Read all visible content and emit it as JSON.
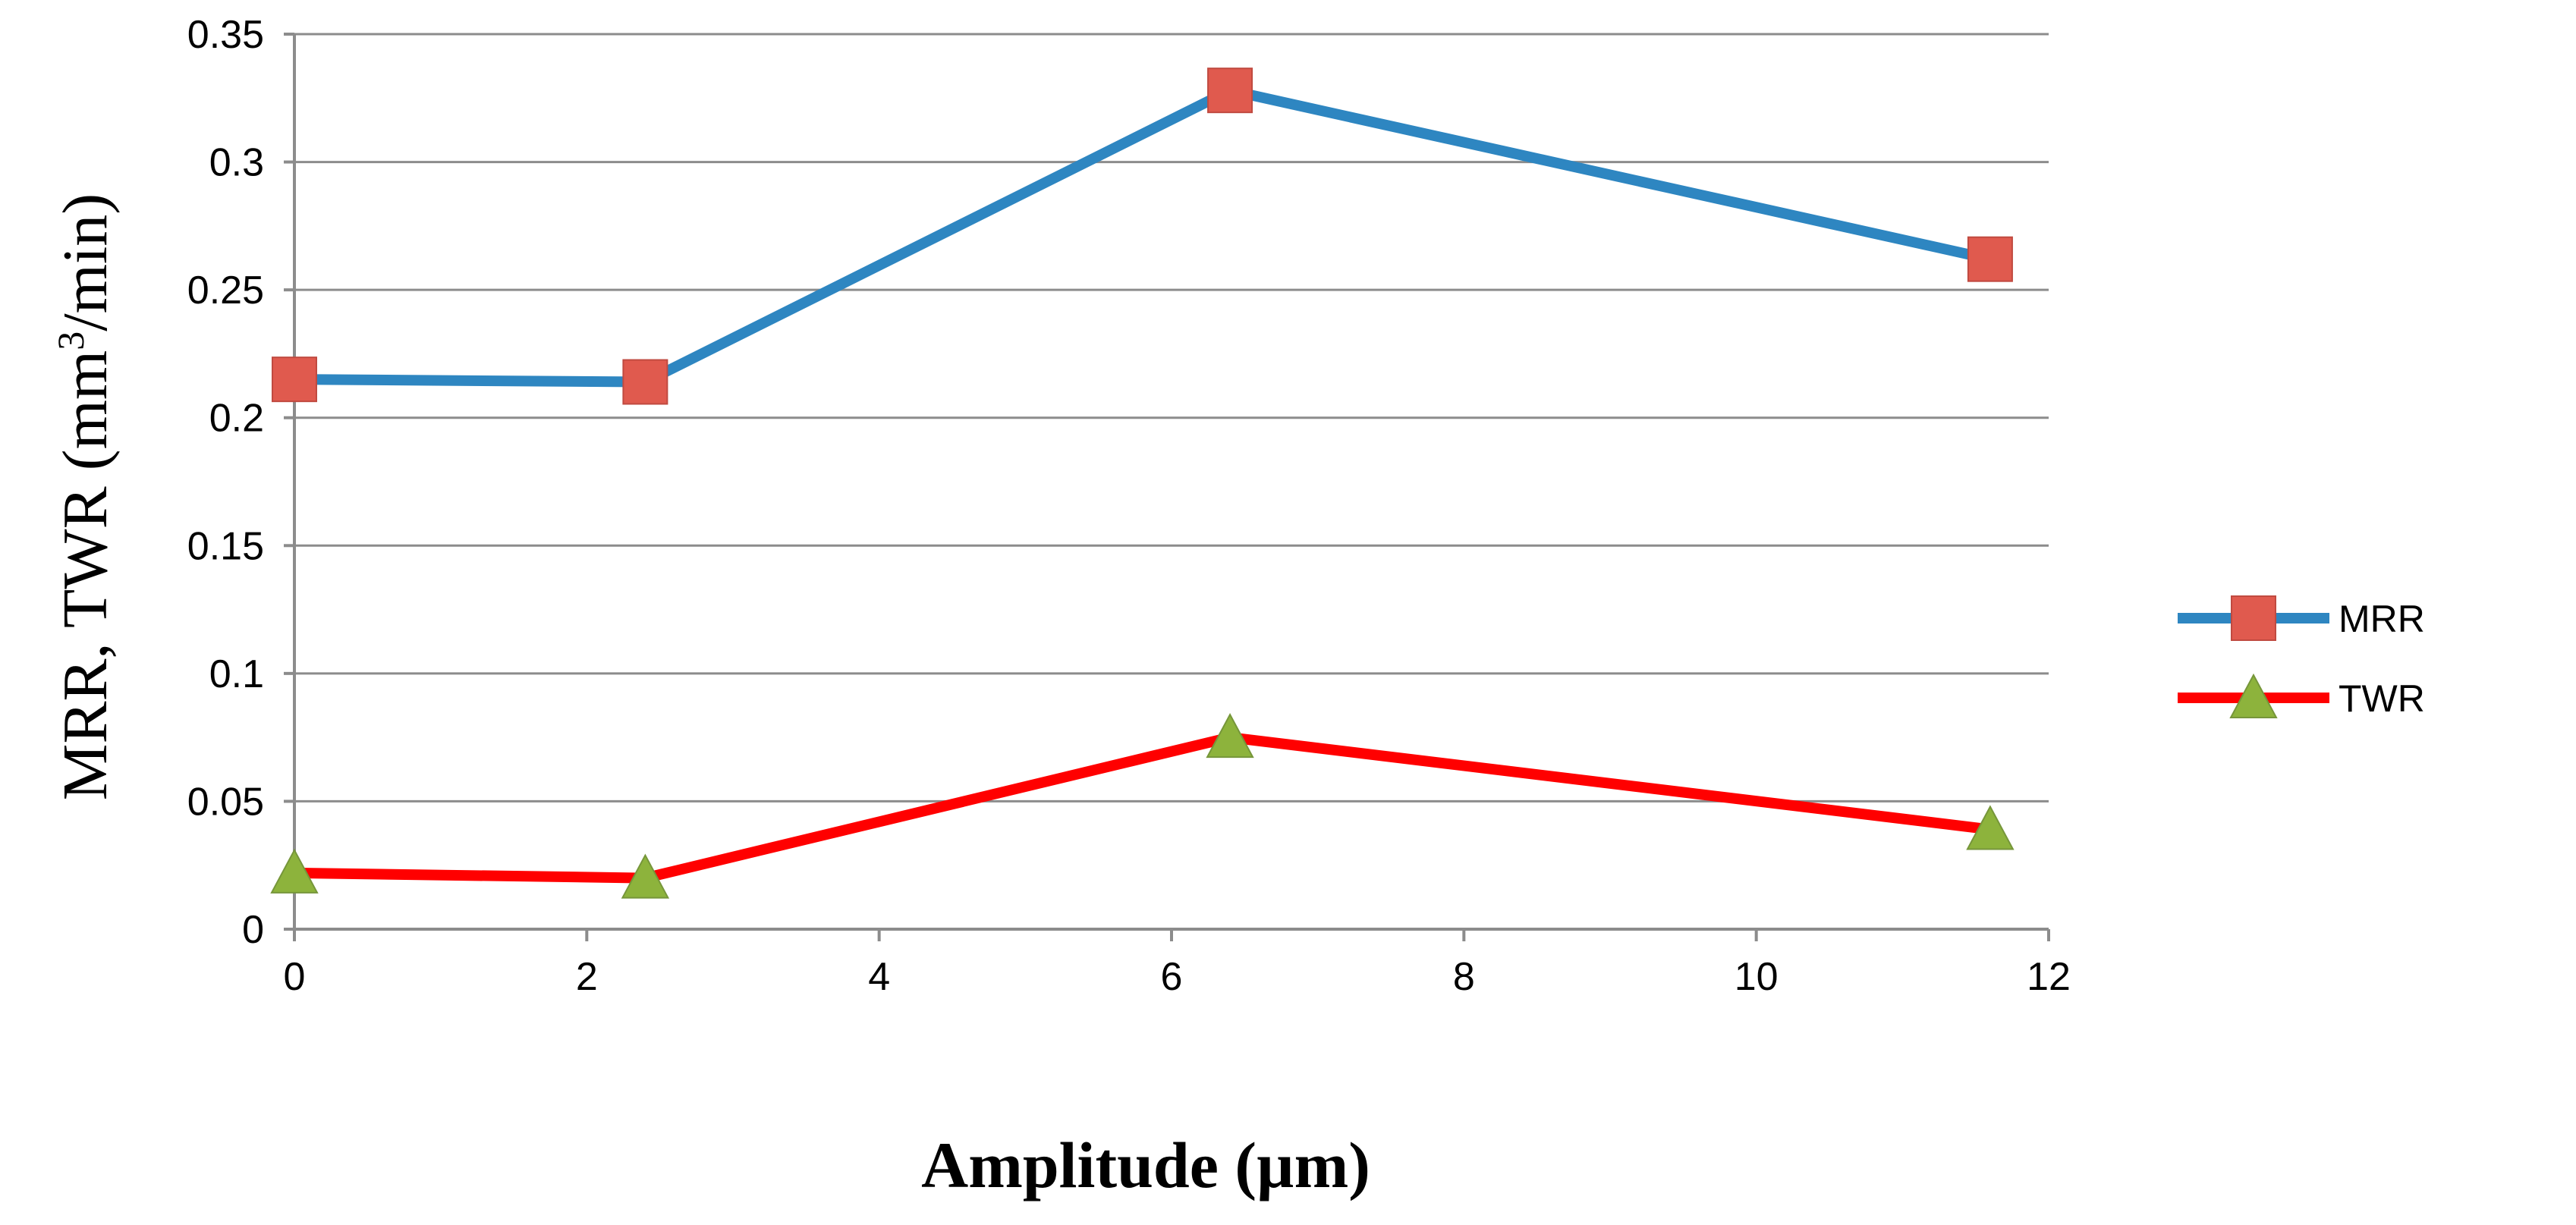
{
  "chart_data": {
    "type": "line",
    "title": "",
    "xlabel": "Amplitude (µm)",
    "ylabel": {
      "prefix": "MRR, TWR (mm",
      "superscript": "3",
      "suffix": "/min)"
    },
    "xlim": [
      0,
      12
    ],
    "ylim": [
      0,
      0.35
    ],
    "xticks": [
      "0",
      "2",
      "4",
      "6",
      "8",
      "10",
      "12"
    ],
    "yticks": [
      "0",
      "0.05",
      "0.1",
      "0.15",
      "0.2",
      "0.25",
      "0.3",
      "0.35"
    ],
    "grid": "horizontal",
    "legend_position": "right",
    "series": [
      {
        "name": "MRR",
        "line_color": "#2E86C1",
        "marker": "square",
        "marker_color": "#E05A4E",
        "x": [
          0,
          2.4,
          6.4,
          11.6
        ],
        "y": [
          0.215,
          0.214,
          0.328,
          0.262
        ]
      },
      {
        "name": "TWR",
        "line_color": "#FF0000",
        "marker": "triangle",
        "marker_color": "#8DB33C",
        "x": [
          0,
          2.4,
          6.4,
          11.6
        ],
        "y": [
          0.022,
          0.02,
          0.075,
          0.039
        ]
      }
    ]
  }
}
